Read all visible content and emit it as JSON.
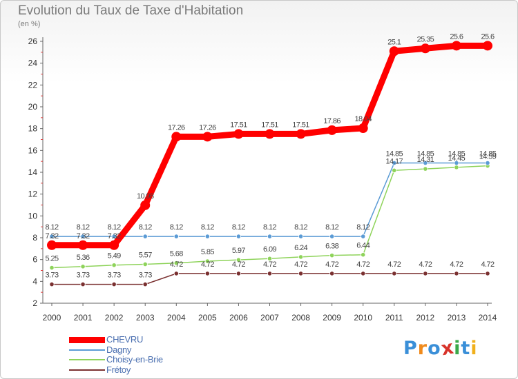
{
  "title": "Evolution du Taux de Taxe d'Habitation",
  "unit": "(en %)",
  "logo": {
    "text": "Proxiti",
    "colors": [
      "#3a8fd8",
      "#f08a1c",
      "#3a8fd8",
      "#d8332a",
      "#3aa84a",
      "#3a8fd8",
      "#f0b01c"
    ]
  },
  "chart_data": {
    "type": "line",
    "title": "Evolution du Taux de Taxe d'Habitation",
    "ylabel": "(en %)",
    "xlabel": "",
    "ylim": [
      2,
      26
    ],
    "yticks": [
      2,
      4,
      6,
      8,
      10,
      12,
      14,
      16,
      18,
      20,
      22,
      24,
      26
    ],
    "grid": false,
    "legend_position": "bottom-left",
    "x": [
      "2000",
      "2001",
      "2002",
      "2003",
      "2004",
      "2005",
      "2006",
      "2007",
      "2008",
      "2009",
      "2010",
      "2011",
      "2012",
      "2013",
      "2014"
    ],
    "series": [
      {
        "name": "CHEVRU",
        "color": "#ff0000",
        "values": [
          7.32,
          7.32,
          7.32,
          10.98,
          17.26,
          17.26,
          17.51,
          17.51,
          17.51,
          17.86,
          18.04,
          25.1,
          25.35,
          25.6,
          25.6
        ],
        "labels": [
          "7.32",
          "7.32",
          "7.32",
          "10.98",
          "17.26",
          "17.26",
          "17.51",
          "17.51",
          "17.51",
          "17.86",
          "18.04",
          "25.1",
          "25.35",
          "25.6",
          "25.6"
        ]
      },
      {
        "name": "Dagny",
        "color": "#5b9bd5",
        "values": [
          8.12,
          8.12,
          8.12,
          8.12,
          8.12,
          8.12,
          8.12,
          8.12,
          8.12,
          8.12,
          8.12,
          14.85,
          14.85,
          14.85,
          14.85
        ],
        "labels": [
          "8.12",
          "8.12",
          "8.12",
          "8.12",
          "8.12",
          "8.12",
          "8.12",
          "8.12",
          "8.12",
          "8.12",
          "8.12",
          "14.85",
          "14.85",
          "14.85",
          "14.85"
        ]
      },
      {
        "name": "Choisy-en-Brie",
        "color": "#8ed35a",
        "values": [
          5.25,
          5.36,
          5.49,
          5.57,
          5.68,
          5.85,
          5.97,
          6.09,
          6.24,
          6.38,
          6.44,
          14.17,
          14.31,
          14.45,
          14.59
        ],
        "labels": [
          "5.25",
          "5.36",
          "5.49",
          "5.57",
          "5.68",
          "5.85",
          "5.97",
          "6.09",
          "6.24",
          "6.38",
          "6.44",
          "14.17",
          "14.31",
          "14.45",
          "14.59"
        ]
      },
      {
        "name": "Frétoy",
        "color": "#7a3030",
        "values": [
          3.73,
          3.73,
          3.73,
          3.73,
          4.72,
          4.72,
          4.72,
          4.72,
          4.72,
          4.72,
          4.72,
          4.72,
          4.72,
          4.72,
          4.72
        ],
        "labels": [
          "3.73",
          "3.73",
          "3.73",
          "3.73",
          "4.72",
          "4.72",
          "4.72",
          "4.72",
          "4.72",
          "4.72",
          "4.72",
          "4.72",
          "4.72",
          "4.72",
          "4.72"
        ]
      }
    ]
  }
}
